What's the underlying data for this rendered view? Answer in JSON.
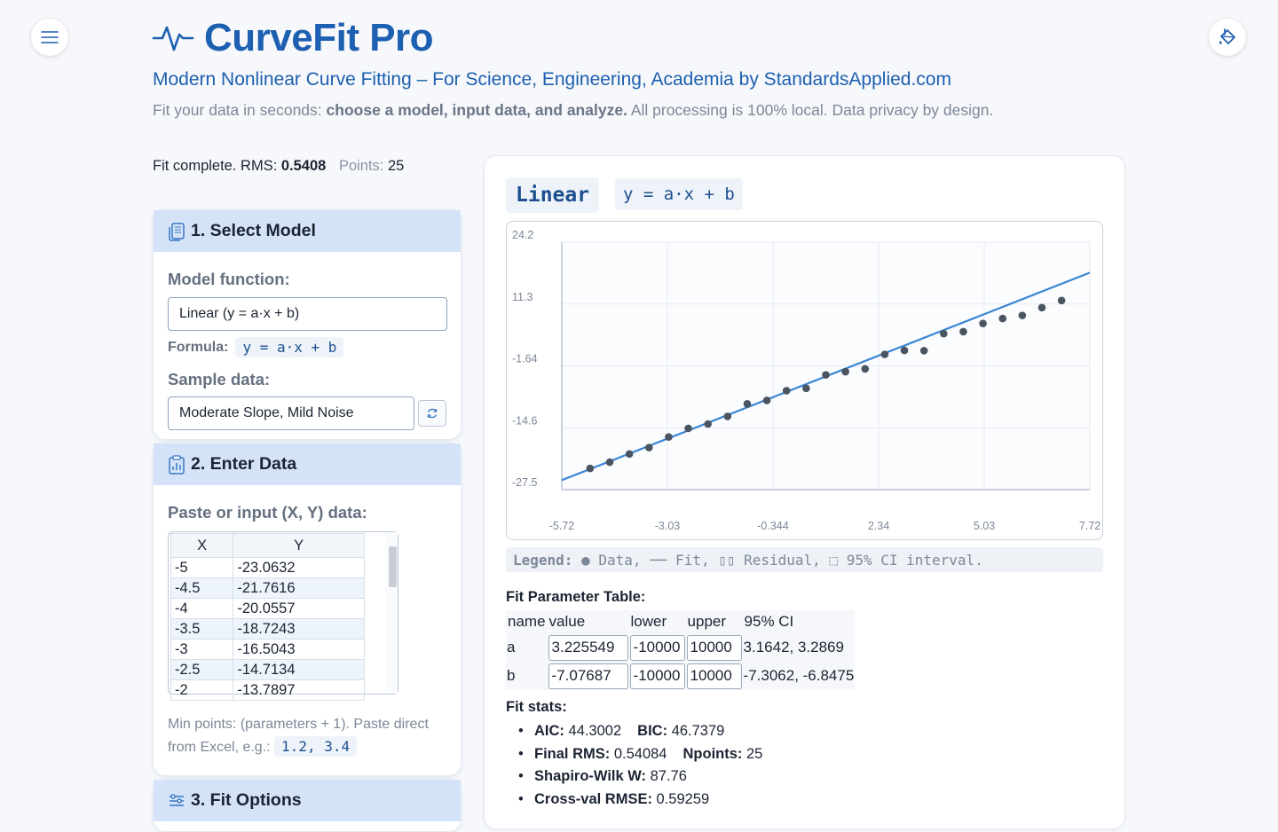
{
  "app": {
    "title": "CurveFit Pro",
    "subtitle": "Modern Nonlinear Curve Fitting – For Science, Engineering, Academia by StandardsApplied.com",
    "tagline_pre": "Fit your data in seconds: ",
    "tagline_bold": "choose a model, input data, and analyze.",
    "tagline_post": " All processing is 100% local. Data privacy by design.",
    "menu_icon": "hamburger-menu-icon",
    "theme_icon": "paint-bucket-icon",
    "accent": "#1d5fb0"
  },
  "status": {
    "prefix": "Fit complete. RMS: ",
    "rms": "0.5408",
    "points_label": "Points:",
    "points": "25"
  },
  "select_model": {
    "heading": "1. Select Model",
    "model_label": "Model function:",
    "model_value": "Linear (y = a·x + b)",
    "formula_label": "Formula:",
    "formula": "y = a·x + b",
    "sample_label": "Sample data:",
    "sample_value": "Moderate Slope, Mild Noise"
  },
  "enter_data": {
    "heading": "2. Enter Data",
    "paste_label": "Paste or input (X, Y) data:",
    "columns": [
      "X",
      "Y"
    ],
    "rows": [
      [
        "-5",
        "-23.0632"
      ],
      [
        "-4.5",
        "-21.7616"
      ],
      [
        "-4",
        "-20.0557"
      ],
      [
        "-3.5",
        "-18.7243"
      ],
      [
        "-3",
        "-16.5043"
      ],
      [
        "-2.5",
        "-14.7134"
      ],
      [
        "-2",
        "-13.7897"
      ]
    ],
    "hint": "Min points: (parameters + 1). Paste direct from Excel, e.g.: ",
    "hint_example": "1.2, 3.4"
  },
  "fit_options": {
    "heading": "3. Fit Options"
  },
  "results": {
    "model_name": "Linear",
    "formula": "y = a·x + b",
    "legend_label": "Legend:",
    "legend_text": "● Data, ── Fit, ▯▯ Residual, ⬚ 95% CI interval.",
    "param_title": "Fit Parameter Table:",
    "param_headers": [
      "name",
      "value",
      "lower",
      "upper",
      "95% CI"
    ],
    "params": [
      {
        "name": "a",
        "value": "3.225549",
        "lower": "-10000",
        "upper": "10000",
        "ci": "3.1642, 3.2869"
      },
      {
        "name": "b",
        "value": "-7.07687",
        "lower": "-10000",
        "upper": "10000",
        "ci": "-7.3062, -6.8475"
      }
    ],
    "stats_title": "Fit stats:",
    "stats": {
      "aic_label": "AIC:",
      "aic": "44.3002",
      "bic_label": "BIC:",
      "bic": "46.7379",
      "rms_label": "Final RMS:",
      "rms": "0.54084",
      "npoints_label": "Npoints:",
      "npoints": "25",
      "sw_label": "Shapiro-Wilk W:",
      "sw": "87.76",
      "cv_label": "Cross-val RMSE:",
      "cv": "0.59259"
    }
  },
  "chart_data": {
    "type": "scatter",
    "x_ticks": [
      "-5.72",
      "-3.03",
      "-0.344",
      "2.34",
      "5.03",
      "7.72"
    ],
    "y_ticks": [
      "24.2",
      "11.3",
      "-1.64",
      "-14.6",
      "-27.5"
    ],
    "xlim": [
      -5.72,
      7.72
    ],
    "ylim": [
      -27.5,
      24.2
    ],
    "grid": true,
    "series": [
      {
        "x": [
          -5,
          -4.5,
          -4,
          -3.5,
          -3,
          -2.5,
          -2,
          -1.5,
          -1,
          -0.5,
          0,
          0.5,
          1,
          1.5,
          2,
          2.5,
          3,
          3.5,
          4,
          4.5,
          5,
          5.5,
          6,
          6.5,
          7
        ],
        "y": [
          -23.06,
          -21.76,
          -20.06,
          -18.72,
          -16.5,
          -14.71,
          -13.79,
          -12.2,
          -9.59,
          -8.86,
          -6.83,
          -6.34,
          -3.53,
          -2.87,
          -2.27,
          0.76,
          1.58,
          1.52,
          5.07,
          5.5,
          7.21,
          8.25,
          8.89,
          10.52,
          12.0
        ]
      }
    ],
    "fit": {
      "slope": 3.225549,
      "intercept": -7.07687
    },
    "colors": {
      "points": "#4a5561",
      "fit": "#3a86d4",
      "grid": "#e6eaf0"
    }
  }
}
